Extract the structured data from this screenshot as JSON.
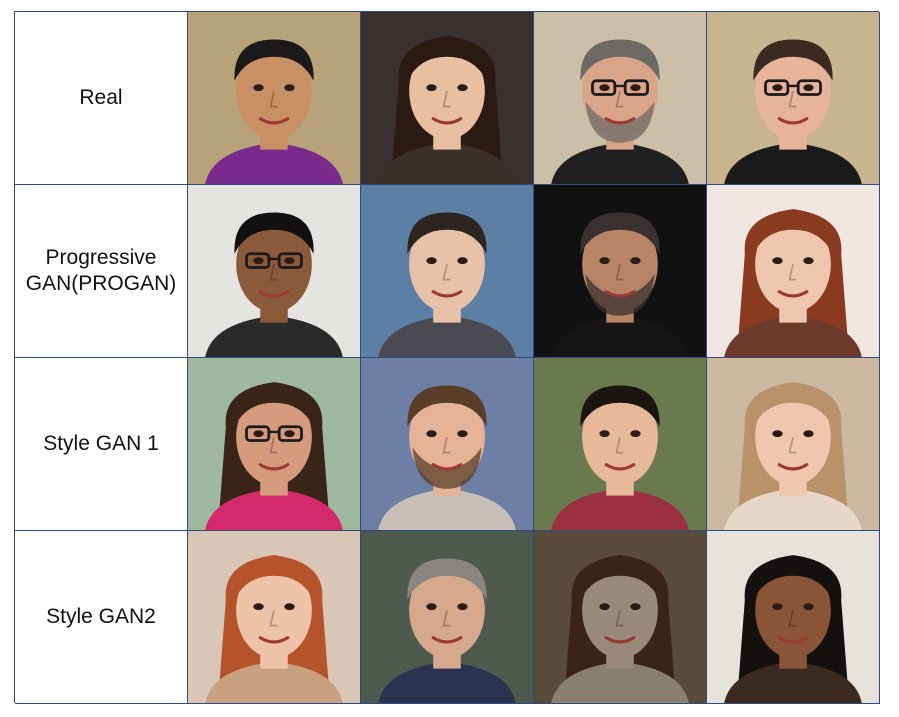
{
  "rows": [
    {
      "label": "Real",
      "faces": [
        {
          "bg": "#b8a27a",
          "skin": "#c98f65",
          "hair": "#1c1a18",
          "shirt": "#7a2a8c",
          "glasses": false,
          "beard": false,
          "long_hair": false
        },
        {
          "bg": "#3a3030",
          "skin": "#e8bfa0",
          "hair": "#2a1a12",
          "shirt": "#3b2f2a",
          "glasses": false,
          "beard": false,
          "long_hair": true
        },
        {
          "bg": "#cbbfa8",
          "skin": "#d9a488",
          "hair": "#6d6a66",
          "shirt": "#1f1f1f",
          "glasses": true,
          "beard": true,
          "long_hair": false
        },
        {
          "bg": "#c9b58f",
          "skin": "#e7b49a",
          "hair": "#3a2a20",
          "shirt": "#1a1a1a",
          "glasses": true,
          "beard": false,
          "long_hair": false
        }
      ]
    },
    {
      "label": "Progressive\nGAN(PROGAN)",
      "faces": [
        {
          "bg": "#e6e4e0",
          "skin": "#8a5a3a",
          "hair": "#121010",
          "shirt": "#2a2a2a",
          "glasses": true,
          "beard": false,
          "long_hair": false
        },
        {
          "bg": "#5d7fa6",
          "skin": "#e8c2a8",
          "hair": "#2b2420",
          "shirt": "#4a4a52",
          "glasses": false,
          "beard": false,
          "long_hair": false
        },
        {
          "bg": "#111111",
          "skin": "#b98466",
          "hair": "#3b3030",
          "shirt": "#151515",
          "glasses": false,
          "beard": true,
          "long_hair": false
        },
        {
          "bg": "#f1e6e2",
          "skin": "#efc7ae",
          "hair": "#8a3a1e",
          "shirt": "#6b3a2a",
          "glasses": false,
          "beard": false,
          "long_hair": true
        }
      ]
    },
    {
      "label": "Style GAN 1",
      "faces": [
        {
          "bg": "#9fb9a0",
          "skin": "#d69a7c",
          "hair": "#3a2418",
          "shirt": "#d22a6a",
          "glasses": true,
          "beard": false,
          "long_hair": true
        },
        {
          "bg": "#6d7fa4",
          "skin": "#e6b397",
          "hair": "#5a3d28",
          "shirt": "#c8c0b8",
          "glasses": false,
          "beard": true,
          "long_hair": false
        },
        {
          "bg": "#6b7a4e",
          "skin": "#e8b998",
          "hair": "#1b1512",
          "shirt": "#9a3040",
          "glasses": false,
          "beard": false,
          "long_hair": false
        },
        {
          "bg": "#cdb8a2",
          "skin": "#f0c6ae",
          "hair": "#b9926a",
          "shirt": "#e8d8c8",
          "glasses": false,
          "beard": false,
          "long_hair": true
        }
      ]
    },
    {
      "label": "Style GAN2",
      "faces": [
        {
          "bg": "#d9c6b6",
          "skin": "#efc3a8",
          "hair": "#b5542a",
          "shirt": "#c9a080",
          "glasses": false,
          "beard": false,
          "long_hair": true
        },
        {
          "bg": "#4e5a4e",
          "skin": "#d8a88c",
          "hair": "#8a8582",
          "shirt": "#2a3450",
          "glasses": false,
          "beard": false,
          "long_hair": false
        },
        {
          "bg": "#5a4a3a",
          "skin": "#9a8a7a",
          "hair": "#3a2418",
          "shirt": "#8a8070",
          "glasses": false,
          "beard": false,
          "long_hair": true
        },
        {
          "bg": "#e6e2dc",
          "skin": "#8a5436",
          "hair": "#141010",
          "shirt": "#3a2a22",
          "glasses": false,
          "beard": false,
          "long_hair": true
        }
      ]
    }
  ]
}
